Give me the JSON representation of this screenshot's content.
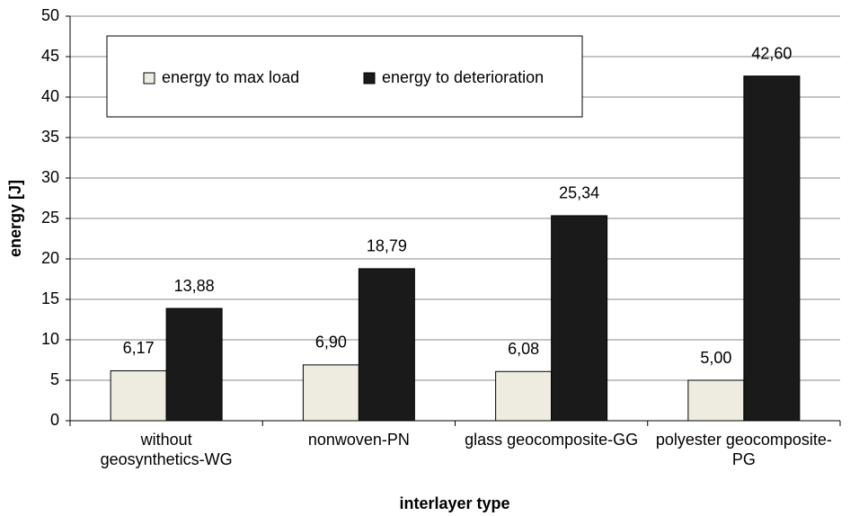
{
  "chart_data": {
    "type": "bar",
    "categories": [
      "without\ngeosynthetics-WG",
      "nonwoven-PN",
      "glass geocomposite-GG",
      "polyester geocomposite-\nPG"
    ],
    "series": [
      {
        "name": "energy to max load",
        "color": "#eeece1",
        "values": [
          6.17,
          6.9,
          6.08,
          5.0
        ],
        "value_labels": [
          "6,17",
          "6,90",
          "6,08",
          "5,00"
        ]
      },
      {
        "name": "energy to deterioration",
        "color": "#1a1a1a",
        "values": [
          13.88,
          18.79,
          25.34,
          42.6
        ],
        "value_labels": [
          "13,88",
          "18,79",
          "25,34",
          "42,60"
        ]
      }
    ],
    "xlabel": "interlayer type",
    "ylabel": "energy [J]",
    "ylim": [
      0,
      50
    ],
    "yticks": [
      0,
      5,
      10,
      15,
      20,
      25,
      30,
      35,
      40,
      45,
      50
    ],
    "grid": true
  }
}
